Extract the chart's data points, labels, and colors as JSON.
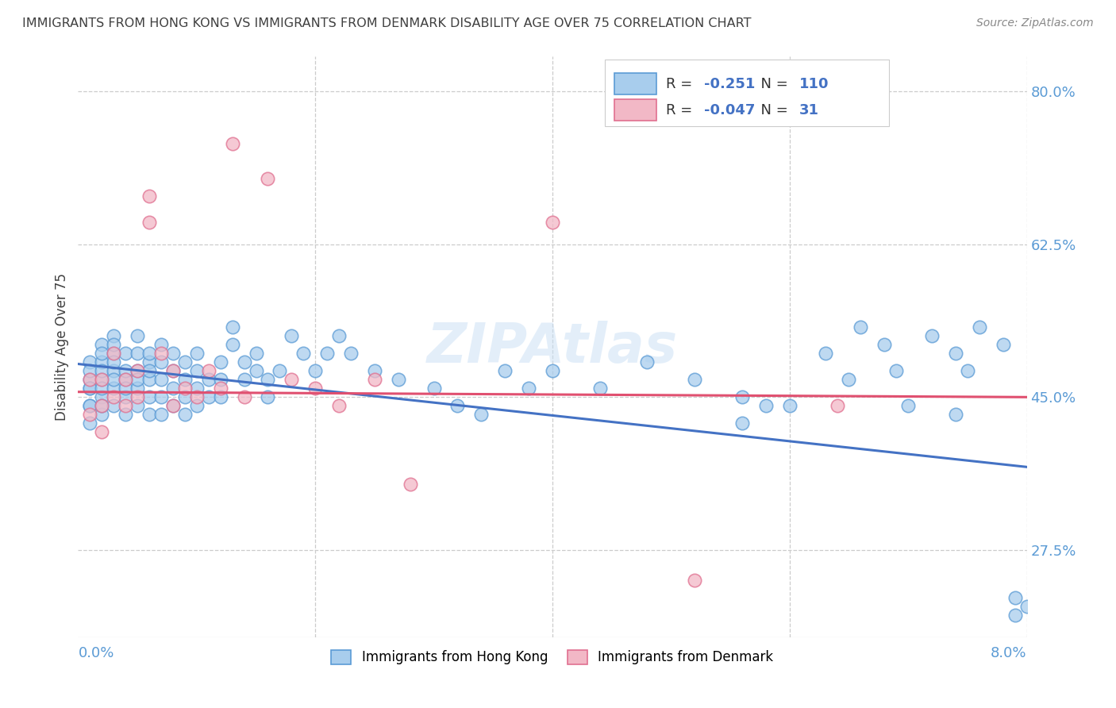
{
  "title": "IMMIGRANTS FROM HONG KONG VS IMMIGRANTS FROM DENMARK DISABILITY AGE OVER 75 CORRELATION CHART",
  "source": "Source: ZipAtlas.com",
  "ylabel": "Disability Age Over 75",
  "ytick_labels": [
    "27.5%",
    "45.0%",
    "62.5%",
    "80.0%"
  ],
  "ytick_values": [
    0.275,
    0.45,
    0.625,
    0.8
  ],
  "xlim": [
    0.0,
    0.08
  ],
  "ylim": [
    0.175,
    0.84
  ],
  "legend_hk_r": "-0.251",
  "legend_hk_n": "110",
  "legend_dk_r": "-0.047",
  "legend_dk_n": "31",
  "hk_color": "#A8CDED",
  "dk_color": "#F2B8C6",
  "hk_edge_color": "#5B9BD5",
  "dk_edge_color": "#E07090",
  "hk_line_color": "#4472C4",
  "dk_line_color": "#E05070",
  "background_color": "#FFFFFF",
  "grid_color": "#CCCCCC",
  "title_color": "#404040",
  "axis_label_color": "#5B9BD5",
  "watermark_color": "#C8DFF5",
  "hk_scatter_x": [
    0.001,
    0.001,
    0.001,
    0.001,
    0.001,
    0.001,
    0.001,
    0.001,
    0.002,
    0.002,
    0.002,
    0.002,
    0.002,
    0.002,
    0.002,
    0.002,
    0.002,
    0.003,
    0.003,
    0.003,
    0.003,
    0.003,
    0.003,
    0.003,
    0.003,
    0.004,
    0.004,
    0.004,
    0.004,
    0.004,
    0.004,
    0.005,
    0.005,
    0.005,
    0.005,
    0.005,
    0.005,
    0.006,
    0.006,
    0.006,
    0.006,
    0.006,
    0.006,
    0.007,
    0.007,
    0.007,
    0.007,
    0.007,
    0.008,
    0.008,
    0.008,
    0.008,
    0.009,
    0.009,
    0.009,
    0.009,
    0.01,
    0.01,
    0.01,
    0.01,
    0.011,
    0.011,
    0.012,
    0.012,
    0.012,
    0.013,
    0.013,
    0.014,
    0.014,
    0.015,
    0.015,
    0.016,
    0.016,
    0.017,
    0.018,
    0.019,
    0.02,
    0.021,
    0.022,
    0.023,
    0.025,
    0.027,
    0.03,
    0.032,
    0.034,
    0.036,
    0.038,
    0.04,
    0.044,
    0.048,
    0.052,
    0.056,
    0.06,
    0.065,
    0.07,
    0.074,
    0.075,
    0.076,
    0.078,
    0.079,
    0.079,
    0.08,
    0.056,
    0.058,
    0.063,
    0.066,
    0.068,
    0.069,
    0.072,
    0.074
  ],
  "hk_scatter_y": [
    0.49,
    0.47,
    0.46,
    0.44,
    0.42,
    0.44,
    0.46,
    0.48,
    0.51,
    0.49,
    0.47,
    0.45,
    0.43,
    0.48,
    0.46,
    0.44,
    0.5,
    0.52,
    0.5,
    0.48,
    0.46,
    0.44,
    0.47,
    0.49,
    0.51,
    0.47,
    0.45,
    0.43,
    0.5,
    0.48,
    0.46,
    0.48,
    0.46,
    0.44,
    0.5,
    0.52,
    0.47,
    0.49,
    0.47,
    0.45,
    0.43,
    0.5,
    0.48,
    0.47,
    0.49,
    0.51,
    0.45,
    0.43,
    0.5,
    0.48,
    0.46,
    0.44,
    0.49,
    0.47,
    0.45,
    0.43,
    0.48,
    0.46,
    0.44,
    0.5,
    0.47,
    0.45,
    0.49,
    0.47,
    0.45,
    0.53,
    0.51,
    0.49,
    0.47,
    0.5,
    0.48,
    0.47,
    0.45,
    0.48,
    0.52,
    0.5,
    0.48,
    0.5,
    0.52,
    0.5,
    0.48,
    0.47,
    0.46,
    0.44,
    0.43,
    0.48,
    0.46,
    0.48,
    0.46,
    0.49,
    0.47,
    0.45,
    0.44,
    0.47,
    0.44,
    0.43,
    0.48,
    0.53,
    0.51,
    0.2,
    0.22,
    0.21,
    0.42,
    0.44,
    0.5,
    0.53,
    0.51,
    0.48,
    0.52,
    0.5
  ],
  "dk_scatter_x": [
    0.001,
    0.001,
    0.002,
    0.002,
    0.002,
    0.003,
    0.003,
    0.004,
    0.004,
    0.005,
    0.005,
    0.006,
    0.006,
    0.007,
    0.008,
    0.008,
    0.009,
    0.01,
    0.011,
    0.012,
    0.013,
    0.014,
    0.016,
    0.018,
    0.02,
    0.022,
    0.025,
    0.028,
    0.04,
    0.052,
    0.064
  ],
  "dk_scatter_y": [
    0.47,
    0.43,
    0.47,
    0.44,
    0.41,
    0.5,
    0.45,
    0.47,
    0.44,
    0.48,
    0.45,
    0.68,
    0.65,
    0.5,
    0.48,
    0.44,
    0.46,
    0.45,
    0.48,
    0.46,
    0.74,
    0.45,
    0.7,
    0.47,
    0.46,
    0.44,
    0.47,
    0.35,
    0.65,
    0.24,
    0.44
  ],
  "hk_trend_x": [
    0.0,
    0.08
  ],
  "hk_trend_y": [
    0.488,
    0.37
  ],
  "dk_trend_x": [
    0.0,
    0.08
  ],
  "dk_trend_y": [
    0.456,
    0.45
  ]
}
